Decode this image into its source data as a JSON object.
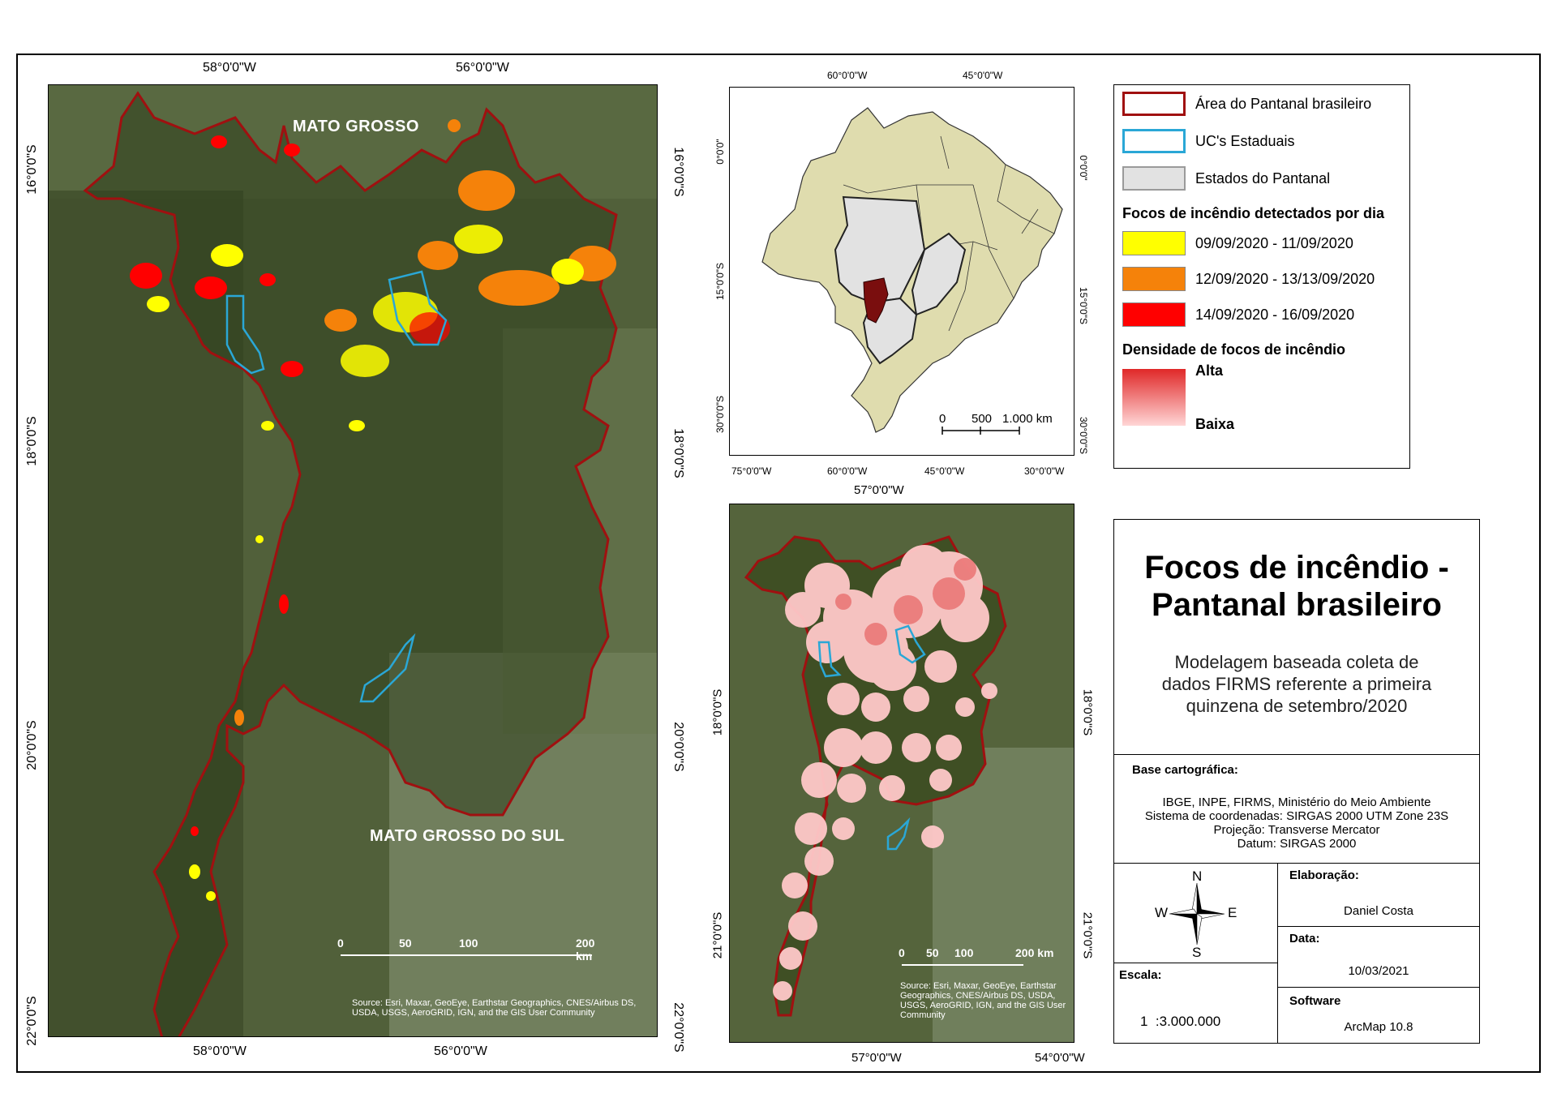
{
  "main_map": {
    "top_coords": [
      "58°0'0\"W",
      "56°0'0\"W"
    ],
    "bottom_coords": [
      "58°0'0\"W",
      "56°0'0\"W"
    ],
    "left_coords": [
      "16°0'0\"S",
      "18°0'0\"S",
      "20°0'0\"S",
      "22°0'0\"S"
    ],
    "right_coords": [
      "16°0'0\"S",
      "18°0'0\"S",
      "20°0'0\"S",
      "22°0'0\"S"
    ],
    "labels": {
      "north_state": "MATO GROSSO",
      "south_state": "MATO GROSSO DO SUL"
    },
    "scale": {
      "ticks": [
        "0",
        "50",
        "100",
        "200 km"
      ]
    },
    "source": "Source: Esri, Maxar, GeoEye, Earthstar Geographics, CNES/Airbus DS, USDA, USGS, AeroGRID, IGN, and the GIS User Community"
  },
  "inset_brazil": {
    "top_coords": [
      "60°0'0\"W",
      "45°0'0\"W"
    ],
    "bottom_coords": [
      "75°0'0\"W",
      "60°0'0\"W",
      "45°0'0\"W",
      "30°0'0\"W"
    ],
    "left_coords": [
      "0°0'0\"",
      "15°0'0\"S",
      "30°0'0\"S"
    ],
    "right_coords": [
      "0°0'0\"",
      "15°0'0\"S",
      "30°0'0\"S"
    ],
    "scale": {
      "ticks": [
        "0",
        "500",
        "1.000 km"
      ]
    }
  },
  "density_map": {
    "top_coords": [
      "57°0'0\"W"
    ],
    "bottom_coords": [
      "57°0'0\"W",
      "54°0'0\"W"
    ],
    "left_coords": [
      "18°0'0\"S",
      "21°0'0\"S"
    ],
    "right_coords": [
      "18°0'0\"S",
      "21°0'0\"S"
    ],
    "scale": {
      "ticks": [
        "0",
        "50",
        "100",
        "200 km"
      ]
    },
    "source": "Source: Esri, Maxar, GeoEye, Earthstar Geographics, CNES/Airbus DS, USDA, USGS, AeroGRID, IGN, and the GIS User Community"
  },
  "legend": {
    "items": [
      {
        "label": "Área do Pantanal brasileiro",
        "border": "#a01010",
        "fill": "#ffffff"
      },
      {
        "label": "UC's Estaduais",
        "border": "#2aa7d6",
        "fill": "#ffffff"
      },
      {
        "label": "Estados do Pantanal",
        "border": "#9a9a9a",
        "fill": "#e2e2e2"
      }
    ],
    "fire_heading": "Focos de incêndio detectados por dia",
    "fire_items": [
      {
        "label": "09/09/2020 - 11/09/2020",
        "color": "#ffff00"
      },
      {
        "label": "12/09/2020 - 13/13/09/2020",
        "color": "#f5820a"
      },
      {
        "label": "14/09/2020 - 16/09/2020",
        "color": "#ff0000"
      }
    ],
    "density_heading": "Densidade de focos de incêndio",
    "density_high": "Alta",
    "density_low": "Baixa"
  },
  "title_block": {
    "title_line1": "Focos de incêndio -",
    "title_line2": "Pantanal brasileiro",
    "subtitle_line1": "Modelagem baseada coleta de",
    "subtitle_line2": "dados FIRMS referente a primeira",
    "subtitle_line3": "quinzena de setembro/2020"
  },
  "base": {
    "heading": "Base cartográfica:",
    "line1": "IBGE, INPE, FIRMS, Ministério do Meio Ambiente",
    "line2": "Sistema de coordenadas: SIRGAS 2000 UTM Zone 23S",
    "line3": "Projeção: Transverse Mercator",
    "line4": "Datum: SIRGAS 2000"
  },
  "compass": {
    "n": "N",
    "s": "S",
    "e": "E",
    "w": "W"
  },
  "scale_text": {
    "heading": "Escala:",
    "value": "1  :3.000.000"
  },
  "credits": {
    "elab_heading": "Elaboração:",
    "elab_value": "Daniel Costa",
    "date_heading": "Data:",
    "date_value": "10/03/2021",
    "software_heading": "Software",
    "software_value": "ArcMap 10.8"
  }
}
